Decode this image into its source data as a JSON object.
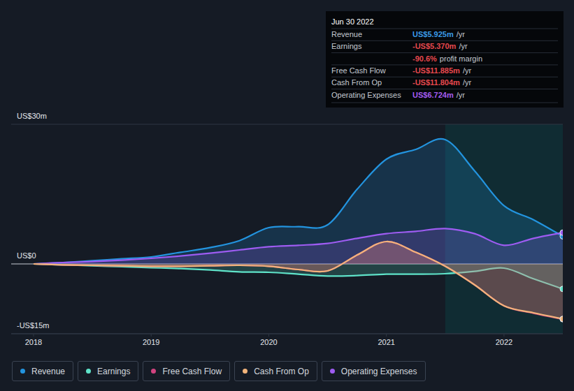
{
  "chart_data": {
    "type": "line",
    "x": [
      2018,
      2018.25,
      2018.5,
      2018.75,
      2019,
      2019.25,
      2019.5,
      2019.75,
      2020,
      2020.25,
      2020.5,
      2020.75,
      2021,
      2021.25,
      2021.5,
      2021.75,
      2022,
      2022.25,
      2022.5
    ],
    "xlim": [
      2017.81,
      2022.5
    ],
    "xticks": [
      2018,
      2019,
      2020,
      2021,
      2022
    ],
    "ylim": [
      -15,
      30
    ],
    "yticks": [
      {
        "value": -15,
        "label": "-US$15m"
      },
      {
        "value": 0,
        "label": "US$0"
      },
      {
        "value": 30,
        "label": "US$30m"
      }
    ],
    "grid": true,
    "legend": "bottom",
    "shaded_x": [
      2021.5,
      2022.5
    ],
    "series": [
      {
        "name": "Revenue",
        "type": "area",
        "color": "#2394df",
        "values": [
          0,
          0.3,
          0.7,
          1.1,
          1.5,
          2.5,
          3.5,
          5.0,
          7.8,
          8.0,
          8.4,
          16,
          22.5,
          24.6,
          26.7,
          20,
          12.5,
          9.5,
          5.925
        ]
      },
      {
        "name": "Earnings",
        "type": "area",
        "color": "#5fe3c9",
        "values": [
          0,
          -0.2,
          -0.4,
          -0.6,
          -0.8,
          -1.0,
          -1.3,
          -1.7,
          -1.8,
          -2.2,
          -2.6,
          -2.5,
          -2.2,
          -2.2,
          -2.1,
          -1.6,
          -0.9,
          -3.2,
          -5.37
        ]
      },
      {
        "name": "Free Cash Flow",
        "type": "area",
        "color": "#d1437f",
        "values": [
          0,
          -0.2,
          -0.3,
          -0.4,
          -0.5,
          -0.5,
          -0.4,
          -0.3,
          -0.5,
          -1.2,
          -1.5,
          1.9,
          4.8,
          2.5,
          -0.5,
          -4.5,
          -9.0,
          -10.6,
          -11.885
        ]
      },
      {
        "name": "Cash From Op",
        "type": "area",
        "color": "#f2b47b",
        "values": [
          0,
          -0.2,
          -0.3,
          -0.4,
          -0.5,
          -0.5,
          -0.4,
          -0.3,
          -0.5,
          -1.2,
          -1.5,
          1.9,
          4.8,
          2.5,
          -0.5,
          -4.5,
          -9.0,
          -10.5,
          -11.804
        ]
      },
      {
        "name": "Operating Expenses",
        "type": "area",
        "color": "#9e5cf2",
        "values": [
          0,
          0.3,
          0.5,
          0.8,
          1.2,
          1.7,
          2.3,
          3.0,
          3.7,
          4.0,
          4.4,
          5.5,
          6.5,
          7.0,
          7.6,
          6.5,
          4.0,
          5.5,
          6.724
        ]
      }
    ],
    "tooltip": {
      "title": "Jun 30 2022",
      "rows": [
        {
          "label": "Revenue",
          "value": "US$5.925m",
          "unit": "/yr",
          "color": "#3b9be6"
        },
        {
          "label": "Earnings",
          "value": "-US$5.370m",
          "unit": "/yr",
          "color": "#e5484d"
        },
        {
          "value": "-90.6%",
          "unit": "profit margin",
          "color": "#e5484d"
        },
        {
          "label": "Free Cash Flow",
          "value": "-US$11.885m",
          "unit": "/yr",
          "color": "#e5484d"
        },
        {
          "label": "Cash From Op",
          "value": "-US$11.804m",
          "unit": "/yr",
          "color": "#e5484d"
        },
        {
          "label": "Operating Expenses",
          "value": "US$6.724m",
          "unit": "/yr",
          "color": "#a45cf0"
        }
      ]
    }
  }
}
